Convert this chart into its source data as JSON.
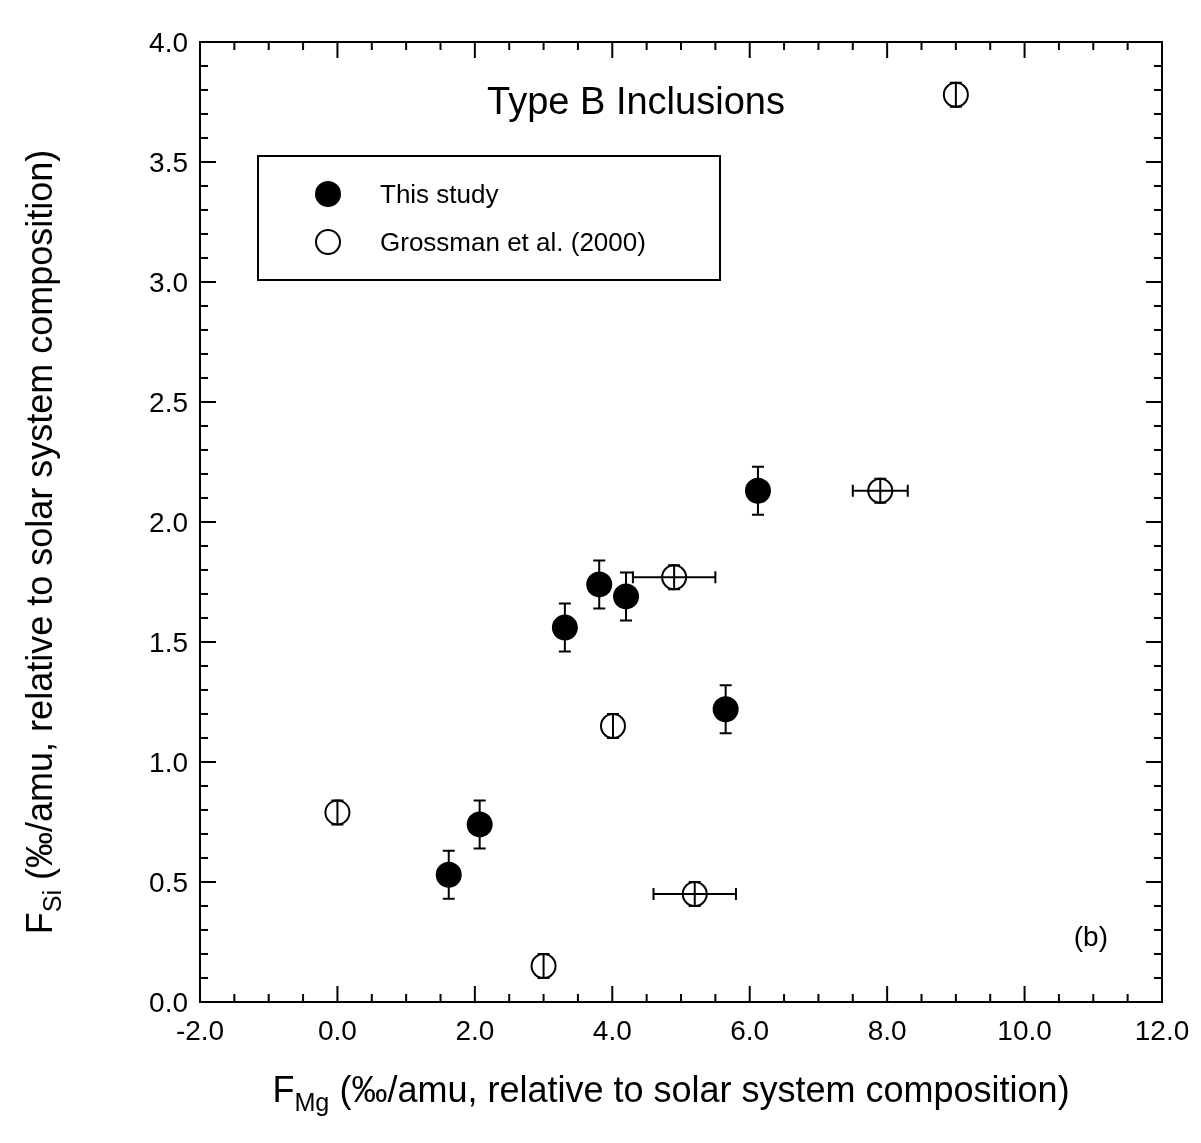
{
  "chart_data": {
    "type": "scatter",
    "title": "Type B Inclusions",
    "xlabel": "F$_{Mg}$ (‰/amu, relative to solar system composition)",
    "ylabel": "F$_{Si}$ (‰/amu, relative to solar system composition)",
    "xlim": [
      -2,
      12
    ],
    "ylim": [
      0,
      4
    ],
    "xticks": [
      {
        "value": -2,
        "label": "-2.0"
      },
      {
        "value": -1.5,
        "label": null
      },
      {
        "value": -1,
        "label": null
      },
      {
        "value": -0.5,
        "label": null
      },
      {
        "value": 0,
        "label": "0.0"
      },
      {
        "value": 0.5,
        "label": null
      },
      {
        "value": 1,
        "label": null
      },
      {
        "value": 1.5,
        "label": null
      },
      {
        "value": 2,
        "label": "2.0"
      },
      {
        "value": 2.5,
        "label": null
      },
      {
        "value": 3,
        "label": null
      },
      {
        "value": 3.5,
        "label": null
      },
      {
        "value": 4,
        "label": "4.0"
      },
      {
        "value": 4.5,
        "label": null
      },
      {
        "value": 5,
        "label": null
      },
      {
        "value": 5.5,
        "label": null
      },
      {
        "value": 6,
        "label": "6.0"
      },
      {
        "value": 6.5,
        "label": null
      },
      {
        "value": 7,
        "label": null
      },
      {
        "value": 7.5,
        "label": null
      },
      {
        "value": 8,
        "label": "8.0"
      },
      {
        "value": 8.5,
        "label": null
      },
      {
        "value": 9,
        "label": null
      },
      {
        "value": 9.5,
        "label": null
      },
      {
        "value": 10,
        "label": "10.0"
      },
      {
        "value": 10.5,
        "label": null
      },
      {
        "value": 11,
        "label": null
      },
      {
        "value": 11.5,
        "label": null
      },
      {
        "value": 12,
        "label": "12.0"
      }
    ],
    "yticks": [
      {
        "value": 0,
        "label": "0.0"
      },
      {
        "value": 0.1,
        "label": null
      },
      {
        "value": 0.2,
        "label": null
      },
      {
        "value": 0.3,
        "label": null
      },
      {
        "value": 0.4,
        "label": null
      },
      {
        "value": 0.5,
        "label": "0.5"
      },
      {
        "value": 0.6,
        "label": null
      },
      {
        "value": 0.7,
        "label": null
      },
      {
        "value": 0.8,
        "label": null
      },
      {
        "value": 0.9,
        "label": null
      },
      {
        "value": 1,
        "label": "1.0"
      },
      {
        "value": 1.1,
        "label": null
      },
      {
        "value": 1.2,
        "label": null
      },
      {
        "value": 1.3,
        "label": null
      },
      {
        "value": 1.4,
        "label": null
      },
      {
        "value": 1.5,
        "label": "1.5"
      },
      {
        "value": 1.6,
        "label": null
      },
      {
        "value": 1.7,
        "label": null
      },
      {
        "value": 1.8,
        "label": null
      },
      {
        "value": 1.9,
        "label": null
      },
      {
        "value": 2,
        "label": "2.0"
      },
      {
        "value": 2.1,
        "label": null
      },
      {
        "value": 2.2,
        "label": null
      },
      {
        "value": 2.3,
        "label": null
      },
      {
        "value": 2.4,
        "label": null
      },
      {
        "value": 2.5,
        "label": "2.5"
      },
      {
        "value": 2.6,
        "label": null
      },
      {
        "value": 2.7,
        "label": null
      },
      {
        "value": 2.8,
        "label": null
      },
      {
        "value": 2.9,
        "label": null
      },
      {
        "value": 3,
        "label": "3.0"
      },
      {
        "value": 3.1,
        "label": null
      },
      {
        "value": 3.2,
        "label": null
      },
      {
        "value": 3.3,
        "label": null
      },
      {
        "value": 3.4,
        "label": null
      },
      {
        "value": 3.5,
        "label": "3.5"
      },
      {
        "value": 3.6,
        "label": null
      },
      {
        "value": 3.7,
        "label": null
      },
      {
        "value": 3.8,
        "label": null
      },
      {
        "value": 3.9,
        "label": null
      },
      {
        "value": 4,
        "label": "4.0"
      }
    ],
    "grid": false,
    "legend": "top left",
    "marker": "circle",
    "series": [
      {
        "name": "This study",
        "color": "#000000",
        "x": [
          1.62,
          2.07,
          3.31,
          3.81,
          4.2,
          5.65,
          6.12
        ],
        "values": [
          0.53,
          0.74,
          1.56,
          1.74,
          1.69,
          1.22,
          2.13
        ],
        "errors": [
          0.1,
          0.1,
          0.1,
          0.1,
          0.1,
          0.1,
          0.1
        ]
      },
      {
        "name": "Grossman et al. (2000)",
        "color": "#ffffff",
        "x": [
          0,
          3,
          4.01,
          4.9,
          5.2,
          7.9,
          9
        ],
        "values": [
          0.79,
          0.15,
          1.15,
          1.77,
          0.45,
          2.13,
          3.78
        ],
        "errors": [
          0.05,
          0.05,
          0.05,
          0.05,
          0.05,
          0.05,
          0.05
        ],
        "xerrors": [
          null,
          null,
          null,
          0.6,
          0.6,
          0.4,
          null
        ]
      }
    ],
    "annotations": [
      "(b)"
    ]
  }
}
